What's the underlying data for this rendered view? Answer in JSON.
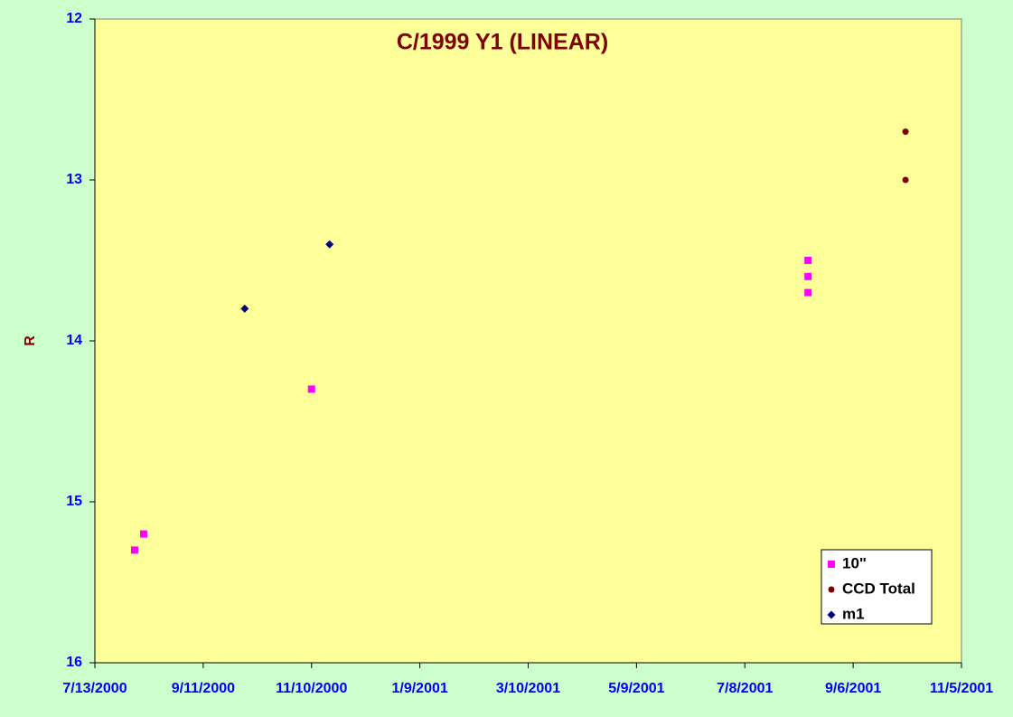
{
  "chart_data": {
    "type": "scatter",
    "title": "C/1999 Y1 (LINEAR)",
    "y_label": "R",
    "y_reversed": true,
    "xlim": [
      "2000-07-13",
      "2001-11-05"
    ],
    "xticks": [
      {
        "value": "2000-07-13",
        "label": "7/13/2000"
      },
      {
        "value": "2000-09-11",
        "label": "9/11/2000"
      },
      {
        "value": "2000-11-10",
        "label": "11/10/2000"
      },
      {
        "value": "2001-01-09",
        "label": "1/9/2001"
      },
      {
        "value": "2001-03-10",
        "label": "3/10/2001"
      },
      {
        "value": "2001-05-09",
        "label": "5/9/2001"
      },
      {
        "value": "2001-07-08",
        "label": "7/8/2001"
      },
      {
        "value": "2001-09-06",
        "label": "9/6/2001"
      },
      {
        "value": "2001-11-05",
        "label": "11/5/2001"
      }
    ],
    "ylim": [
      12,
      16
    ],
    "yticks": [
      12,
      13,
      14,
      15,
      16
    ],
    "series": [
      {
        "name": "10\"",
        "color": "#ff00ff",
        "marker": "square",
        "x": [
          "2000-08-04",
          "2000-08-09",
          "2000-11-10",
          "2001-08-12",
          "2001-08-12",
          "2001-08-12"
        ],
        "values": [
          15.3,
          15.2,
          14.3,
          13.5,
          13.6,
          13.7
        ]
      },
      {
        "name": "CCD Total",
        "color": "#800000",
        "marker": "circle",
        "x": [
          "2001-10-05",
          "2001-10-05"
        ],
        "values": [
          12.7,
          13.0
        ]
      },
      {
        "name": "m1",
        "color": "#000080",
        "marker": "diamond",
        "x": [
          "2000-10-04",
          "2000-11-20"
        ],
        "values": [
          13.8,
          13.4
        ]
      }
    ]
  }
}
